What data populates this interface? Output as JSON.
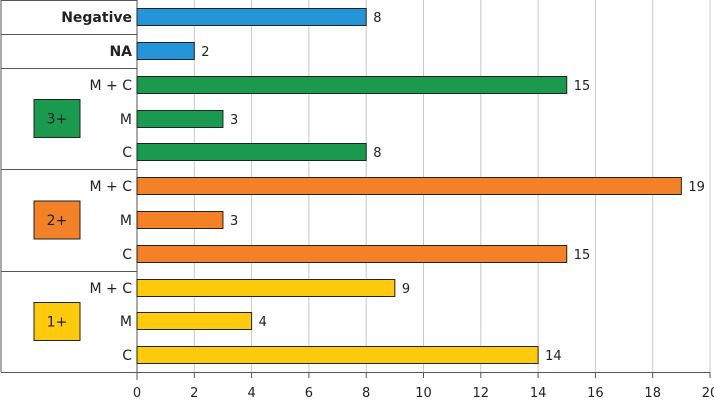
{
  "chart_data": {
    "type": "bar",
    "orientation": "horizontal",
    "title": "",
    "xlabel": "",
    "ylabel": "",
    "xlim": [
      0,
      20
    ],
    "xticks": [
      0,
      2,
      4,
      6,
      8,
      10,
      12,
      14,
      16,
      18,
      20
    ],
    "grid": true,
    "rows": [
      {
        "group": "Negative",
        "label": "",
        "value": 8,
        "color": "#2594d8"
      },
      {
        "group": "NA",
        "label": "",
        "value": 2,
        "color": "#2594d8"
      },
      {
        "group": "3+",
        "label": "M + C",
        "value": 15,
        "color": "#1a9a4e"
      },
      {
        "group": "3+",
        "label": "M",
        "value": 3,
        "color": "#1a9a4e"
      },
      {
        "group": "3+",
        "label": "C",
        "value": 8,
        "color": "#1a9a4e"
      },
      {
        "group": "2+",
        "label": "M + C",
        "value": 19,
        "color": "#f28127"
      },
      {
        "group": "2+",
        "label": "M",
        "value": 3,
        "color": "#f28127"
      },
      {
        "group": "2+",
        "label": "C",
        "value": 15,
        "color": "#f28127"
      },
      {
        "group": "1+",
        "label": "M + C",
        "value": 9,
        "color": "#fdcb0c"
      },
      {
        "group": "1+",
        "label": "M",
        "value": 4,
        "color": "#fdcb0c"
      },
      {
        "group": "1+",
        "label": "C",
        "value": 14,
        "color": "#fdcb0c"
      }
    ],
    "groups": [
      {
        "name": "Negative",
        "color": "#2594d8",
        "badge": false
      },
      {
        "name": "NA",
        "color": "#2594d8",
        "badge": false
      },
      {
        "name": "3+",
        "color": "#1a9a4e",
        "badge": true
      },
      {
        "name": "2+",
        "color": "#f28127",
        "badge": true
      },
      {
        "name": "1+",
        "color": "#fdcb0c",
        "badge": true
      }
    ]
  }
}
